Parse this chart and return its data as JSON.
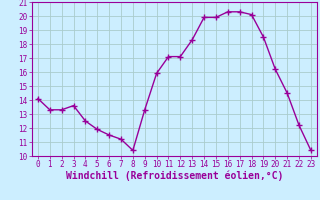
{
  "x": [
    0,
    1,
    2,
    3,
    4,
    5,
    6,
    7,
    8,
    9,
    10,
    11,
    12,
    13,
    14,
    15,
    16,
    17,
    18,
    19,
    20,
    21,
    22,
    23
  ],
  "y": [
    14.1,
    13.3,
    13.3,
    13.6,
    12.5,
    11.9,
    11.5,
    11.2,
    10.4,
    13.3,
    15.9,
    17.1,
    17.1,
    18.3,
    19.9,
    19.9,
    20.3,
    20.3,
    20.1,
    18.5,
    16.2,
    14.5,
    12.2,
    10.4
  ],
  "line_color": "#990099",
  "marker": "+",
  "marker_size": 4,
  "linewidth": 1.0,
  "background_color": "#cceeff",
  "grid_color": "#aacccc",
  "xlabel": "Windchill (Refroidissement éolien,°C)",
  "xlabel_fontsize": 7,
  "xlabel_color": "#990099",
  "tick_color": "#990099",
  "tick_labelsize": 5.5,
  "ylim": [
    10,
    21
  ],
  "xlim": [
    -0.5,
    23.5
  ],
  "yticks": [
    10,
    11,
    12,
    13,
    14,
    15,
    16,
    17,
    18,
    19,
    20,
    21
  ],
  "xticks": [
    0,
    1,
    2,
    3,
    4,
    5,
    6,
    7,
    8,
    9,
    10,
    11,
    12,
    13,
    14,
    15,
    16,
    17,
    18,
    19,
    20,
    21,
    22,
    23
  ]
}
